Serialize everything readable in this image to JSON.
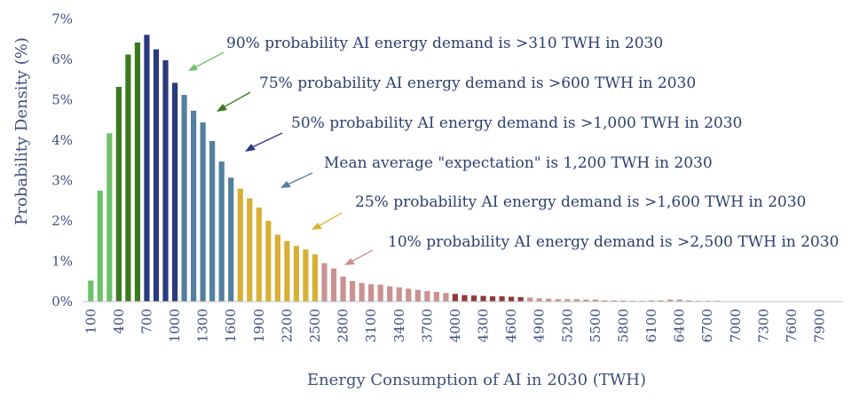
{
  "chart_data": {
    "type": "bar",
    "ylabel": "Probability Density (%)",
    "xlabel": "Energy Consumption of AI in 2030 (TWH)",
    "ylim": [
      0,
      7
    ],
    "y_ticks": [
      "0%",
      "1%",
      "2%",
      "3%",
      "4%",
      "5%",
      "6%",
      "7%"
    ],
    "y_tick_values": [
      0,
      1,
      2,
      3,
      4,
      5,
      6,
      7
    ],
    "x_tick_labels": [
      "100",
      "400",
      "700",
      "1000",
      "1300",
      "1600",
      "1900",
      "2200",
      "2500",
      "2800",
      "3100",
      "3400",
      "3700",
      "4000",
      "4300",
      "4600",
      "4900",
      "5200",
      "5500",
      "5800",
      "6100",
      "6400",
      "6700",
      "7000",
      "7300",
      "7600",
      "7900"
    ],
    "x_start": 100,
    "x_step": 100,
    "values": [
      0.52,
      2.75,
      4.17,
      5.32,
      6.12,
      6.42,
      6.61,
      6.25,
      5.98,
      5.42,
      5.12,
      4.73,
      4.44,
      3.98,
      3.47,
      3.07,
      2.8,
      2.56,
      2.33,
      2.0,
      1.66,
      1.5,
      1.38,
      1.29,
      1.17,
      0.95,
      0.82,
      0.62,
      0.51,
      0.46,
      0.43,
      0.42,
      0.38,
      0.35,
      0.32,
      0.29,
      0.26,
      0.24,
      0.21,
      0.19,
      0.16,
      0.15,
      0.14,
      0.13,
      0.13,
      0.12,
      0.11,
      0.1,
      0.08,
      0.07,
      0.06,
      0.06,
      0.06,
      0.05,
      0.05,
      0.03,
      0.03,
      0.03,
      0.02,
      0.02,
      0.03,
      0.03,
      0.05,
      0.05,
      0.03,
      0.02,
      0.02,
      0.02,
      0.01,
      0.01,
      0.01,
      0.01,
      0.01,
      0.01,
      0.01,
      0.01,
      0.01,
      0.01,
      0.01,
      0.01
    ],
    "segments": [
      {
        "from_x": 100,
        "to_x": 300,
        "color": "#6cc26a"
      },
      {
        "from_x": 400,
        "to_x": 600,
        "color": "#3a7a1f"
      },
      {
        "from_x": 700,
        "to_x": 1000,
        "color": "#2a3a7e"
      },
      {
        "from_x": 1100,
        "to_x": 1600,
        "color": "#52809f"
      },
      {
        "from_x": 1700,
        "to_x": 2500,
        "color": "#d8b036"
      },
      {
        "from_x": 2600,
        "to_x": 3900,
        "color": "#c99291"
      },
      {
        "from_x": 4000,
        "to_x": 4700,
        "color": "#8e3a3a"
      },
      {
        "from_x": 4800,
        "to_x": 8000,
        "color": "#c99291"
      }
    ],
    "annotations": [
      {
        "text": "90% probability AI energy demand is >310 TWH in 2030",
        "arrow_color": "#6cc26a"
      },
      {
        "text": "75% probability AI energy demand is >600 TWH in 2030",
        "arrow_color": "#3a7a1f"
      },
      {
        "text": "50% probability AI energy demand is >1,000 TWH in 2030",
        "arrow_color": "#2a3a7e"
      },
      {
        "text": "Mean average \"expectation\" is 1,200 TWH in 2030",
        "arrow_color": "#52809f"
      },
      {
        "text": "25% probability AI energy demand is >1,600 TWH in 2030",
        "arrow_color": "#d8b036"
      },
      {
        "text": "10% probability AI energy demand is >2,500 TWH in 2030",
        "arrow_color": "#c99291"
      }
    ]
  }
}
